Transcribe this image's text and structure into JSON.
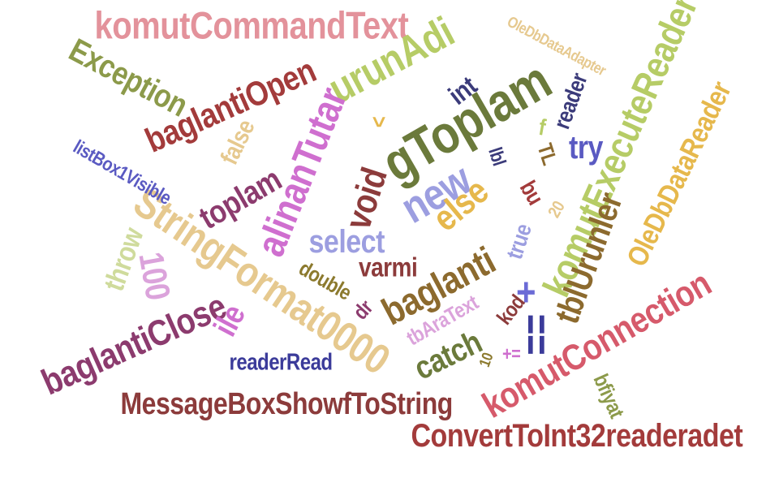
{
  "word_cloud": {
    "words": [
      {
        "text": "komutCommandText",
        "color": "#e3929b"
      },
      {
        "text": "OleDbDataAdapter",
        "color": "#e6c98f"
      },
      {
        "text": "Exception",
        "color": "#8c9a4a"
      },
      {
        "text": "baglantiOpen",
        "color": "#a33b3b"
      },
      {
        "text": "urunAdi",
        "color": "#b6cc66"
      },
      {
        "text": "int",
        "color": "#3b3b7a"
      },
      {
        "text": "komutExecuteReader",
        "color": "#b6cc66"
      },
      {
        "text": "reader",
        "color": "#3b3b7a"
      },
      {
        "text": "gToplam",
        "color": "#6b7a3b"
      },
      {
        "text": "baglantiClose",
        "color": "#8c3b6e"
      },
      {
        "text": "alinanTutar",
        "color": "#cf6fcf"
      },
      {
        "text": "StringFormat0000",
        "color": "#e6c98f"
      },
      {
        "text": "listBox1Visible",
        "color": "#5a5ac2"
      },
      {
        "text": "false",
        "color": "#e6c98f"
      },
      {
        "text": "toplam",
        "color": "#8c3b6e"
      },
      {
        "text": "void",
        "color": "#8c3b3b"
      },
      {
        "text": "new",
        "color": "#9c9ee0"
      },
      {
        "text": "else",
        "color": "#e6b84c"
      },
      {
        "text": "select",
        "color": "#9c9ee0"
      },
      {
        "text": "throw",
        "color": "#cfdb9c"
      },
      {
        "text": "100",
        "color": "#dba3db"
      },
      {
        "text": "ile",
        "color": "#cf6fcf"
      },
      {
        "text": "double",
        "color": "#8c7a2e"
      },
      {
        "text": "varmi",
        "color": "#8c3b3b"
      },
      {
        "text": "baglanti",
        "color": "#8c6a2e"
      },
      {
        "text": "dr",
        "color": "#8c3b6e"
      },
      {
        "text": "tbAraText",
        "color": "#dba3db"
      },
      {
        "text": "kod",
        "color": "#8c3b3b"
      },
      {
        "text": "tblUrunler",
        "color": "#8c6a2e"
      },
      {
        "text": "OleDbDataReader",
        "color": "#e6b84c"
      },
      {
        "text": "komutConnection",
        "color": "#d65a6b"
      },
      {
        "text": "catch",
        "color": "#6b7a3b"
      },
      {
        "text": "readerRead",
        "color": "#3b3b9a"
      },
      {
        "text": "MessageBoxShowfToString",
        "color": "#8c3b3b"
      },
      {
        "text": "ConvertToInt32readeradet",
        "color": "#a33b3b"
      },
      {
        "text": "bfiyat",
        "color": "#8c9a4a"
      },
      {
        "text": "try",
        "color": "#5a5ac2"
      },
      {
        "text": "TL",
        "color": "#8c6a2e"
      },
      {
        "text": "lbl",
        "color": "#3b3b7a"
      },
      {
        "text": "bu",
        "color": "#a33b3b"
      },
      {
        "text": "20",
        "color": "#e6c98f"
      },
      {
        "text": "true",
        "color": "#9c9ee0"
      },
      {
        "text": "10",
        "color": "#8c7a2e"
      },
      {
        "text": "+=",
        "color": "#cf6fcf"
      },
      {
        "text": "+",
        "color": "#6b6bd6"
      },
      {
        "text": "==",
        "color": "#3b3b9a"
      },
      {
        "text": ">",
        "color": "#e6b84c"
      },
      {
        "text": "f",
        "color": "#b6cc66"
      },
      {
        "text": "baglantiClose",
        "color": "#8c3b6e"
      }
    ]
  }
}
